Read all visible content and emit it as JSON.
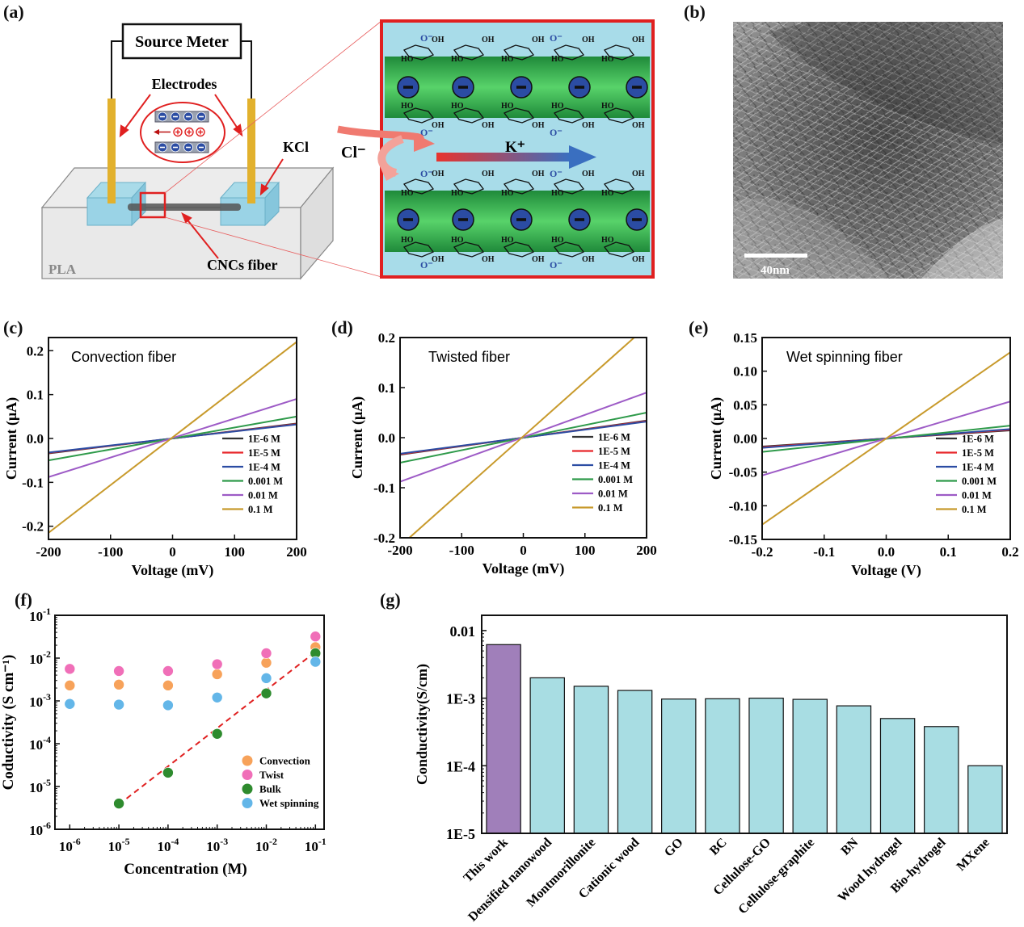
{
  "panel_labels": [
    "(a)",
    "(b)",
    "(c)",
    "(d)",
    "(e)",
    "(f)",
    "(g)"
  ],
  "schematic": {
    "source_meter": "Source Meter",
    "electrodes": "Electrodes",
    "kcl": "KCl",
    "pla": "PLA",
    "fiber": "CNCs fiber",
    "cl": "Cl⁻",
    "k": "K⁺",
    "o_minus": "O⁻",
    "oh": "OH",
    "ho": "HO"
  },
  "sem": {
    "scale_bar": "40nm"
  },
  "colors": {
    "black": "#333333",
    "red": "#e8262a",
    "blue": "#2b4ca3",
    "green": "#2e9a4a",
    "purple": "#9d5bc6",
    "gold": "#c89a2c",
    "orange_marker": "#f7a25a",
    "pink_marker": "#f06fb8",
    "green_marker": "#2e8b2e",
    "blue_marker": "#63b6e8",
    "bar_purple": "#a07fba",
    "bar_teal": "#a8dde3"
  },
  "chart_data": [
    {
      "id": "c",
      "type": "line",
      "title": "Convection fiber",
      "xlabel": "Voltage (mV)",
      "ylabel": "Current (μA)",
      "xlim": [
        -200,
        200
      ],
      "ylim": [
        -0.23,
        0.23
      ],
      "xticks": [
        "-200",
        "-100",
        "0",
        "100",
        "200"
      ],
      "yticks": [
        "-0.2",
        "-0.1",
        "0.0",
        "0.1",
        "0.2"
      ],
      "legend_position": "bottom-right",
      "series": [
        {
          "name": "1E-6 M",
          "x": [
            -200,
            200
          ],
          "y": [
            -0.034,
            0.034
          ]
        },
        {
          "name": "1E-5 M",
          "x": [
            -200,
            200
          ],
          "y": [
            -0.033,
            0.033
          ]
        },
        {
          "name": "1E-4 M",
          "x": [
            -200,
            200
          ],
          "y": [
            -0.032,
            0.032
          ]
        },
        {
          "name": "0.001 M",
          "x": [
            -200,
            200
          ],
          "y": [
            -0.05,
            0.05
          ]
        },
        {
          "name": "0.01 M",
          "x": [
            -200,
            200
          ],
          "y": [
            -0.088,
            0.09
          ]
        },
        {
          "name": "0.1 M",
          "x": [
            -200,
            200
          ],
          "y": [
            -0.215,
            0.22
          ]
        }
      ]
    },
    {
      "id": "d",
      "type": "line",
      "title": "Twisted fiber",
      "xlabel": "Voltage (mV)",
      "ylabel": "Current (μA)",
      "xlim": [
        -200,
        200
      ],
      "ylim": [
        -0.2,
        0.2
      ],
      "xticks": [
        "-200",
        "-100",
        "0",
        "100",
        "200"
      ],
      "yticks": [
        "-0.2",
        "-0.1",
        "0.0",
        "0.1",
        "0.2"
      ],
      "legend_position": "bottom-right",
      "series": [
        {
          "name": "1E-6 M",
          "x": [
            -200,
            200
          ],
          "y": [
            -0.034,
            0.034
          ]
        },
        {
          "name": "1E-5 M",
          "x": [
            -200,
            200
          ],
          "y": [
            -0.033,
            0.033
          ]
        },
        {
          "name": "1E-4 M",
          "x": [
            -200,
            200
          ],
          "y": [
            -0.032,
            0.032
          ]
        },
        {
          "name": "0.001 M",
          "x": [
            -200,
            200
          ],
          "y": [
            -0.05,
            0.05
          ]
        },
        {
          "name": "0.01 M",
          "x": [
            -200,
            200
          ],
          "y": [
            -0.088,
            0.09
          ]
        },
        {
          "name": "0.1 M",
          "x": [
            -185,
            180
          ],
          "y": [
            -0.2,
            0.2
          ]
        }
      ]
    },
    {
      "id": "e",
      "type": "line",
      "title": "Wet spinning fiber",
      "xlabel": "Voltage (V)",
      "ylabel": "Current (μA)",
      "xlim": [
        -0.2,
        0.2
      ],
      "ylim": [
        -0.15,
        0.15
      ],
      "xticks": [
        "-0.2",
        "-0.1",
        "0.0",
        "0.1",
        "0.2"
      ],
      "yticks": [
        "-0.15",
        "-0.10",
        "-0.05",
        "0.00",
        "0.05",
        "0.10",
        "0.15"
      ],
      "legend_position": "bottom-right",
      "series": [
        {
          "name": "1E-6 M",
          "x": [
            -0.2,
            0.2
          ],
          "y": [
            -0.012,
            0.012
          ]
        },
        {
          "name": "1E-5 M",
          "x": [
            -0.2,
            0.2
          ],
          "y": [
            -0.013,
            0.013
          ]
        },
        {
          "name": "1E-4 M",
          "x": [
            -0.2,
            0.2
          ],
          "y": [
            -0.014,
            0.014
          ]
        },
        {
          "name": "0.001 M",
          "x": [
            -0.2,
            0.2
          ],
          "y": [
            -0.02,
            0.019
          ]
        },
        {
          "name": "0.01 M",
          "x": [
            -0.2,
            0.2
          ],
          "y": [
            -0.055,
            0.055
          ]
        },
        {
          "name": "0.1 M",
          "x": [
            -0.2,
            0.2
          ],
          "y": [
            -0.128,
            0.128
          ]
        }
      ]
    },
    {
      "id": "f",
      "type": "scatter",
      "xlabel": "Concentration (M)",
      "ylabel": "Coductivity (S cm⁻¹)",
      "xscale": "log",
      "yscale": "log",
      "xlim": [
        5e-07,
        0.15
      ],
      "ylim": [
        1e-06,
        0.1
      ],
      "xticks": [
        "10⁻⁶",
        "10⁻⁵",
        "10⁻⁴",
        "10⁻³",
        "10⁻²",
        "10⁻¹"
      ],
      "yticks": [
        "10⁻⁶",
        "10⁻⁵",
        "10⁻⁴",
        "10⁻³",
        "10⁻²",
        "10⁻¹"
      ],
      "legend_position": "bottom-right",
      "series": [
        {
          "name": "Convection",
          "x": [
            1e-06,
            1e-05,
            0.0001,
            0.001,
            0.01,
            0.1
          ],
          "y": [
            0.0023,
            0.0024,
            0.0023,
            0.0042,
            0.0078,
            0.018
          ]
        },
        {
          "name": "Twist",
          "x": [
            1e-06,
            1e-05,
            0.0001,
            0.001,
            0.01,
            0.1
          ],
          "y": [
            0.0056,
            0.005,
            0.005,
            0.0072,
            0.013,
            0.032
          ]
        },
        {
          "name": "Bulk",
          "x": [
            1e-05,
            0.0001,
            0.001,
            0.01,
            0.1
          ],
          "y": [
            4e-06,
            2.1e-05,
            0.00017,
            0.0015,
            0.013
          ]
        },
        {
          "name": "Wet spinning",
          "x": [
            1e-06,
            1e-05,
            0.0001,
            0.001,
            0.01,
            0.1
          ],
          "y": [
            0.00085,
            0.00082,
            0.00079,
            0.0012,
            0.0034,
            0.0082
          ]
        }
      ],
      "fit_line": {
        "x": [
          1e-05,
          0.1
        ],
        "y": [
          3.8e-06,
          0.014
        ]
      }
    },
    {
      "id": "g",
      "type": "bar",
      "ylabel": "Conductivity(S/cm)",
      "yscale": "log",
      "ylim": [
        1e-05,
        0.01
      ],
      "yticks": [
        "1E-5",
        "1E-4",
        "1E-3",
        "0.01"
      ],
      "categories": [
        "This work",
        "Densified nanowood",
        "Montmorillonite",
        "Cationic wood",
        "GO",
        "BC",
        "Cellulose-GO",
        "Cellulose-graphite",
        "BN",
        "Wood hydrogel",
        "Bio-hydrogel",
        "MXene"
      ],
      "values": [
        0.0062,
        0.002,
        0.0015,
        0.0013,
        0.00097,
        0.00098,
        0.001,
        0.00096,
        0.00077,
        0.0005,
        0.00038,
        0.0001
      ]
    }
  ]
}
